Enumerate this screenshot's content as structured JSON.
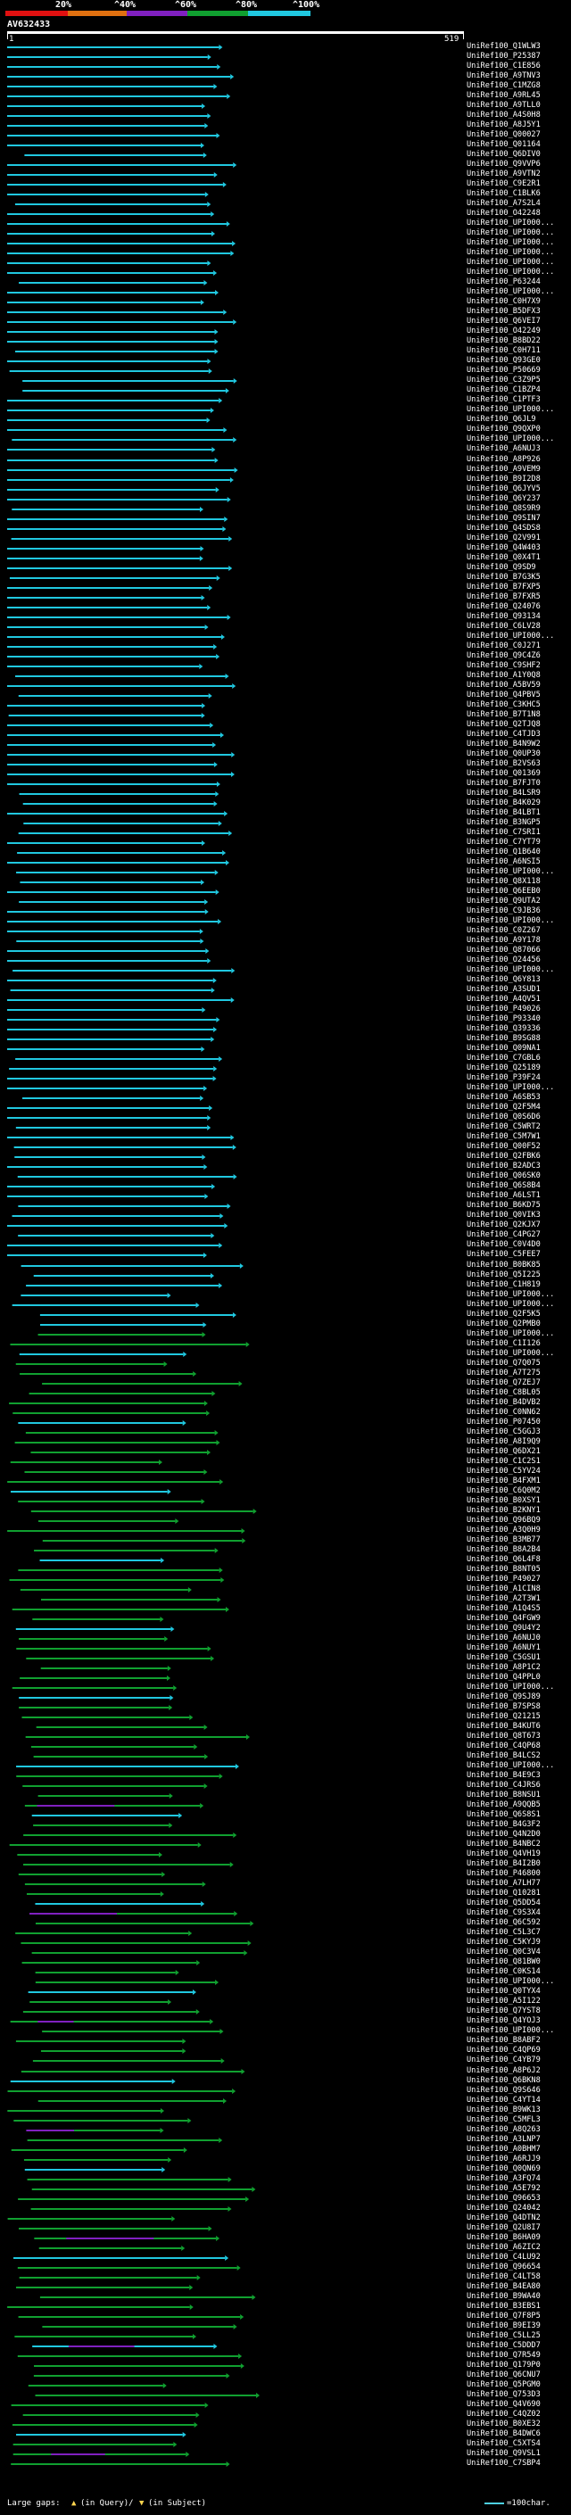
{
  "legend": {
    "labels": [
      "20%",
      "^40%",
      "^60%",
      "^80%",
      "^100%"
    ],
    "colors": [
      "#e01010",
      "#e07010",
      "#8020c0",
      "#10a030",
      "#20c8e0"
    ]
  },
  "query": {
    "name": "AV632433",
    "start": "1",
    "end": "519"
  },
  "hits": [
    "UniRef100_Q1WLW3",
    "UniRef100_P25387",
    "UniRef100_C1E856",
    "UniRef100_A9TNV3",
    "UniRef100_C1MZG8",
    "UniRef100_A9RL45",
    "UniRef100_A9TLL0",
    "UniRef100_A4S0H8",
    "UniRef100_A8J5Y1",
    "UniRef100_Q00027",
    "UniRef100_Q01164",
    "UniRef100_Q6DIV0",
    "UniRef100_Q9VVP6",
    "UniRef100_A9VTN2",
    "UniRef100_C9E2R1",
    "UniRef100_C1BLK6",
    "UniRef100_A7S2L4",
    "UniRef100_O42248",
    "UniRef100_UPI000...",
    "UniRef100_UPI000...",
    "UniRef100_UPI000...",
    "UniRef100_UPI000...",
    "UniRef100_UPI000...",
    "UniRef100_UPI000...",
    "UniRef100_P63244",
    "UniRef100_UPI000...",
    "UniRef100_C0H7X9",
    "UniRef100_B5DFX3",
    "UniRef100_Q6VEI7",
    "UniRef100_O42249",
    "UniRef100_B8BD22",
    "UniRef100_C0H711",
    "UniRef100_Q93GE0",
    "UniRef100_P50669",
    "UniRef100_C3Z9P5",
    "UniRef100_C1BZP4",
    "UniRef100_C1PTF3",
    "UniRef100_UPI000...",
    "UniRef100_Q6JL9",
    "UniRef100_Q9QXP0",
    "UniRef100_UPI000...",
    "UniRef100_A6NUJ3",
    "UniRef100_A8P926",
    "UniRef100_A9VEM9",
    "UniRef100_B9I2D8",
    "UniRef100_Q6JYV5",
    "UniRef100_Q6Y237",
    "UniRef100_Q8S9R9",
    "UniRef100_Q9SIN7",
    "UniRef100_Q4SDS8",
    "UniRef100_Q2V991",
    "UniRef100_Q4W403",
    "UniRef100_Q0X4T1",
    "UniRef100_Q9SD9",
    "UniRef100_B7G3K5",
    "UniRef100_B7FXP5",
    "UniRef100_B7FXR5",
    "UniRef100_Q24076",
    "UniRef100_Q93134",
    "UniRef100_C6LV28",
    "UniRef100_UPI000...",
    "UniRef100_C0J271",
    "UniRef100_Q9C4Z6",
    "UniRef100_C9SHF2",
    "UniRef100_A1Y0Q8",
    "UniRef100_A5BV59",
    "UniRef100_Q4PBV5",
    "UniRef100_C3KHC5",
    "UniRef100_B7T1N8",
    "UniRef100_Q2TJQ8",
    "UniRef100_C4TJD3",
    "UniRef100_B4N9W2",
    "UniRef100_Q0UP30",
    "UniRef100_B2VS63",
    "UniRef100_Q01369",
    "UniRef100_B7FJT0",
    "UniRef100_B4LSR9",
    "UniRef100_B4K029",
    "UniRef100_B4LBT1",
    "UniRef100_B3NGP5",
    "UniRef100_C7SRI1",
    "UniRef100_C7YT79",
    "UniRef100_Q1B640",
    "UniRef100_A6NSI5",
    "UniRef100_UPI000...",
    "UniRef100_Q8X118",
    "UniRef100_Q6EEB0",
    "UniRef100_Q9UTA2",
    "UniRef100_C9JB36",
    "UniRef100_UPI000...",
    "UniRef100_C0Z267",
    "UniRef100_A9Y178",
    "UniRef100_Q87066",
    "UniRef100_O24456",
    "UniRef100_UPI000...",
    "UniRef100_Q6Y813",
    "UniRef100_A3SUD1",
    "UniRef100_A4QV51",
    "UniRef100_P49026",
    "UniRef100_P93340",
    "UniRef100_Q39336",
    "UniRef100_B9SG88",
    "UniRef100_Q09NA1",
    "UniRef100_C7GBL6",
    "UniRef100_Q25189",
    "UniRef100_P39F24",
    "UniRef100_UPI000...",
    "UniRef100_A6SB53",
    "UniRef100_Q2F5M4",
    "UniRef100_Q0S6D6",
    "UniRef100_C5WRT2",
    "UniRef100_C5M7W1",
    "UniRef100_Q00F52",
    "UniRef100_Q2FBK6",
    "UniRef100_B2ADC3",
    "UniRef100_Q06SK0",
    "UniRef100_Q6S8B4",
    "UniRef100_A6LST1",
    "UniRef100_B6KD75",
    "UniRef100_Q0VIK3",
    "UniRef100_Q2KJX7",
    "UniRef100_C4PG27",
    "UniRef100_C0V4D0",
    "UniRef100_C5FEE7",
    "UniRef100_B0BK85",
    "UniRef100_Q5I225",
    "UniRef100_C1H819",
    "UniRef100_UPI000...",
    "UniRef100_UPI000...",
    "UniRef100_Q2F5K5",
    "UniRef100_Q2PMB0",
    "UniRef100_UPI000...",
    "UniRef100_C1I126",
    "UniRef100_UPI000...",
    "UniRef100_Q7Q075",
    "UniRef100_A7T275",
    "UniRef100_Q7ZEJ7",
    "UniRef100_C8BL05",
    "UniRef100_B4DVB2",
    "UniRef100_C0NN62",
    "UniRef100_P07450",
    "UniRef100_C5GGJ3",
    "UniRef100_A8I9Q9",
    "UniRef100_Q6DX21",
    "UniRef100_C1C2S1",
    "UniRef100_C5YV24",
    "UniRef100_B4FXM1",
    "UniRef100_C6Q0M2",
    "UniRef100_B0XSY1",
    "UniRef100_B2KNY1",
    "UniRef100_Q96BQ9",
    "UniRef100_A3Q0H9",
    "UniRef100_B3MB77",
    "UniRef100_B8A2B4",
    "UniRef100_Q6L4F8",
    "UniRef100_B8NT05",
    "UniRef100_P49027",
    "UniRef100_A1CIN8",
    "UniRef100_A2T3W1",
    "UniRef100_A1Q4S5",
    "UniRef100_Q4FGW9",
    "UniRef100_Q9U4Y2",
    "UniRef100_A6NUJ0",
    "UniRef100_A6NUY1",
    "UniRef100_C5GSU1",
    "UniRef100_A8P1C2",
    "UniRef100_Q4PPL0",
    "UniRef100_UPI000...",
    "UniRef100_Q9SJ89",
    "UniRef100_B7SPS8",
    "UniRef100_Q21215",
    "UniRef100_B4KUT6",
    "UniRef100_Q8T673",
    "UniRef100_C4QP68",
    "UniRef100_B4LCS2",
    "UniRef100_UPI000...",
    "UniRef100_B4E9C3",
    "UniRef100_C4JRS6",
    "UniRef100_B8NSU1",
    "UniRef100_A9QQB5",
    "UniRef100_Q6S8S1",
    "UniRef100_B4G3F2",
    "UniRef100_Q4N2D0",
    "UniRef100_B4NBC2",
    "UniRef100_Q4VH19",
    "UniRef100_B4I2B0",
    "UniRef100_P46800",
    "UniRef100_A7LH77",
    "UniRef100_Q10281",
    "UniRef100_Q5DD54",
    "UniRef100_C9S3X4",
    "UniRef100_Q6C592",
    "UniRef100_C5L3C7",
    "UniRef100_C5KYJ9",
    "UniRef100_Q0C3V4",
    "UniRef100_Q81BW0",
    "UniRef100_C0KS14",
    "UniRef100_UPI000...",
    "UniRef100_Q0TYX4",
    "UniRef100_A5I122",
    "UniRef100_Q7YST8",
    "UniRef100_Q4YOJ3",
    "UniRef100_UPI000...",
    "UniRef100_B8ABF2",
    "UniRef100_C4QP69",
    "UniRef100_C4YB79",
    "UniRef100_A8P6J2",
    "UniRef100_Q6BKN8",
    "UniRef100_Q9S646",
    "UniRef100_C4YT14",
    "UniRef100_B9WK13",
    "UniRef100_C5MFL3",
    "UniRef100_A8Q263",
    "UniRef100_A3LNP7",
    "UniRef100_A0BHM7",
    "UniRef100_A6RJJ9",
    "UniRef100_Q0QN69",
    "UniRef100_A3FQ74",
    "UniRef100_A5E792",
    "UniRef100_Q96653",
    "UniRef100_Q24042",
    "UniRef100_Q4DTN2",
    "UniRef100_Q2U8I7",
    "UniRef100_B6HA09",
    "UniRef100_A6ZIC2",
    "UniRef100_C4LU92",
    "UniRef100_Q96654",
    "UniRef100_C4LT58",
    "UniRef100_B4EA80",
    "UniRef100_B9WA40",
    "UniRef100_B3EBS1",
    "UniRef100_Q7F8P5",
    "UniRef100_B9EI39",
    "UniRef100_C5LL25",
    "UniRef100_C5DDD7",
    "UniRef100_Q7R549",
    "UniRef100_Q179P0",
    "UniRef100_Q6CNU7",
    "UniRef100_Q5PGM0",
    "UniRef100_Q753D3",
    "UniRef100_Q4V690",
    "UniRef100_C4QZ02",
    "UniRef100_B0XE32",
    "UniRef100_B4DWC6",
    "UniRef100_C5XTS4",
    "UniRef100_Q9VSL1",
    "UniRef100_C7SBP4"
  ],
  "footer": {
    "large_gaps": "Large gaps:",
    "in_query": "(in Query)/",
    "in_subject": "(in Subject)",
    "scale": "=100char."
  }
}
